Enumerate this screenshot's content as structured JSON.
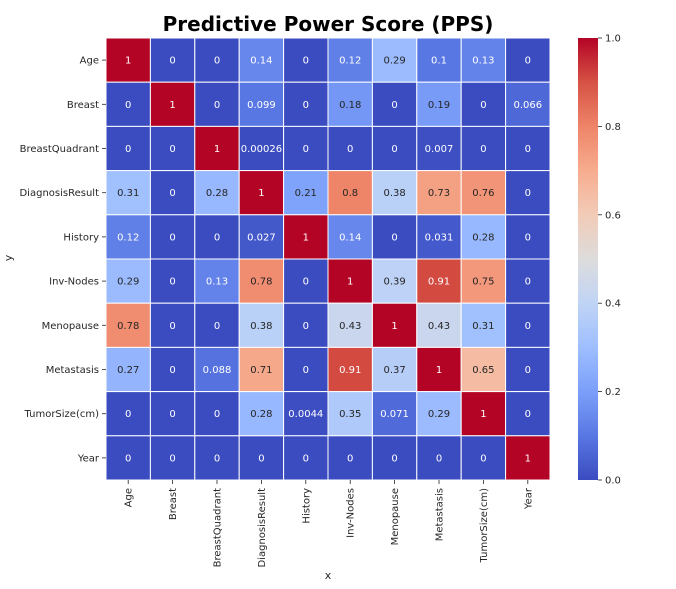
{
  "chart_data": {
    "type": "heatmap",
    "title": "Predictive Power Score (PPS)",
    "xlabel": "x",
    "ylabel": "y",
    "x_categories": [
      "Age",
      "Breast",
      "BreastQuadrant",
      "DiagnosisResult",
      "History",
      "Inv-Nodes",
      "Menopause",
      "Metastasis",
      "TumorSize(cm)",
      "Year"
    ],
    "y_categories": [
      "Age",
      "Breast",
      "BreastQuadrant",
      "DiagnosisResult",
      "History",
      "Inv-Nodes",
      "Menopause",
      "Metastasis",
      "TumorSize(cm)",
      "Year"
    ],
    "values": [
      [
        1,
        0,
        0,
        0.14,
        0,
        0.12,
        0.29,
        0.1,
        0.13,
        0
      ],
      [
        0,
        1,
        0,
        0.099,
        0,
        0.18,
        0,
        0.19,
        0,
        0.066
      ],
      [
        0,
        0,
        1,
        0.00026,
        0,
        0,
        0,
        0.007,
        0,
        0
      ],
      [
        0.31,
        0,
        0.28,
        1,
        0.21,
        0.8,
        0.38,
        0.73,
        0.76,
        0
      ],
      [
        0.12,
        0,
        0,
        0.027,
        1,
        0.14,
        0,
        0.031,
        0.28,
        0
      ],
      [
        0.29,
        0,
        0.13,
        0.78,
        0,
        1,
        0.39,
        0.91,
        0.75,
        0
      ],
      [
        0.78,
        0,
        0,
        0.38,
        0,
        0.43,
        1,
        0.43,
        0.31,
        0
      ],
      [
        0.27,
        0,
        0.088,
        0.71,
        0,
        0.91,
        0.37,
        1,
        0.65,
        0
      ],
      [
        0,
        0,
        0,
        0.28,
        0.0044,
        0.35,
        0.071,
        0.29,
        1,
        0
      ],
      [
        0,
        0,
        0,
        0,
        0,
        0,
        0,
        0,
        0,
        1
      ]
    ],
    "labels": [
      [
        "1",
        "0",
        "0",
        "0.14",
        "0",
        "0.12",
        "0.29",
        "0.1",
        "0.13",
        "0"
      ],
      [
        "0",
        "1",
        "0",
        "0.099",
        "0",
        "0.18",
        "0",
        "0.19",
        "0",
        "0.066"
      ],
      [
        "0",
        "0",
        "1",
        "0.00026",
        "0",
        "0",
        "0",
        "0.007",
        "0",
        "0"
      ],
      [
        "0.31",
        "0",
        "0.28",
        "1",
        "0.21",
        "0.8",
        "0.38",
        "0.73",
        "0.76",
        "0"
      ],
      [
        "0.12",
        "0",
        "0",
        "0.027",
        "1",
        "0.14",
        "0",
        "0.031",
        "0.28",
        "0"
      ],
      [
        "0.29",
        "0",
        "0.13",
        "0.78",
        "0",
        "1",
        "0.39",
        "0.91",
        "0.75",
        "0"
      ],
      [
        "0.78",
        "0",
        "0",
        "0.38",
        "0",
        "0.43",
        "1",
        "0.43",
        "0.31",
        "0"
      ],
      [
        "0.27",
        "0",
        "0.088",
        "0.71",
        "0",
        "0.91",
        "0.37",
        "1",
        "0.65",
        "0"
      ],
      [
        "0",
        "0",
        "0",
        "0.28",
        "0.0044",
        "0.35",
        "0.071",
        "0.29",
        "1",
        "0"
      ],
      [
        "0",
        "0",
        "0",
        "0",
        "0",
        "0",
        "0",
        "0",
        "0",
        "1"
      ]
    ],
    "colorbar": {
      "min": 0,
      "max": 1,
      "ticks": [
        0.0,
        0.2,
        0.4,
        0.6,
        0.8,
        1.0
      ],
      "tick_labels": [
        "0.0",
        "0.2",
        "0.4",
        "0.6",
        "0.8",
        "1.0"
      ],
      "colormap": "coolwarm",
      "colormap_stops": [
        "#3b4cc0",
        "#5977e3",
        "#7b9ff9",
        "#9ebeff",
        "#c0d4f5",
        "#dddcdc",
        "#f2cbb7",
        "#f7ac8e",
        "#ee8468",
        "#d65244",
        "#b40426"
      ]
    },
    "grid": true,
    "legend": "colorbar right"
  }
}
